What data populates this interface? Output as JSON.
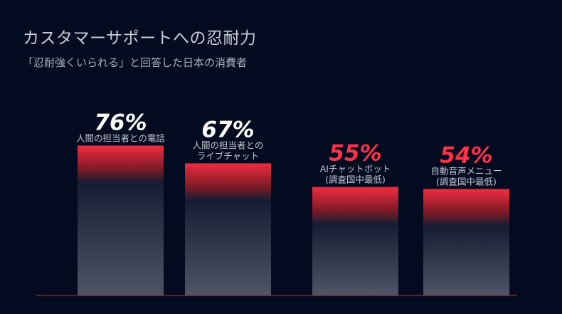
{
  "title": "カスタマーサポートへの忍耐力",
  "subtitle": "「忍耐強くいられる」と回答した日本の消費者",
  "colors": {
    "background": "#030b20",
    "accent": "#ff3146",
    "bar_top": "#f02c3f",
    "bar_bottom": "#4d5566",
    "baseline": "#c0283a",
    "percent_white": "#ffffff"
  },
  "chart_data": {
    "type": "bar",
    "categories": [
      "人間の担当者との電話",
      "人間の担当者とのライブチャット",
      "AIチャットボット(調査国中最低)",
      "自動音声メニュー(調査国中最低)"
    ],
    "series": [
      {
        "values": [
          76,
          67,
          55,
          54
        ]
      }
    ],
    "bars": [
      {
        "value": 76,
        "value_label": "76%",
        "label_lines": [
          "人間の担当者との電話"
        ],
        "highlight": false
      },
      {
        "value": 67,
        "value_label": "67%",
        "label_lines": [
          "人間の担当者との",
          "ライブチャット"
        ],
        "highlight": false
      },
      {
        "value": 55,
        "value_label": "55%",
        "label_lines": [
          "AIチャットボット",
          "(調査国中最低)"
        ],
        "highlight": true
      },
      {
        "value": 54,
        "value_label": "54%",
        "label_lines": [
          "自動音声メニュー",
          "(調査国中最低)"
        ],
        "highlight": true
      }
    ],
    "unit": "%",
    "ylim": [
      0,
      100
    ],
    "grid": false,
    "legend": "none"
  }
}
